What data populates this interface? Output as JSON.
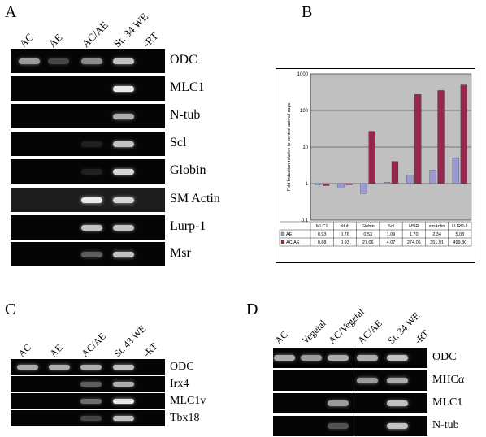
{
  "panels": {
    "A": {
      "letter": "A",
      "lanes": [
        "AC",
        "AE",
        "AC/AE",
        "St. 34 WE",
        "-RT"
      ],
      "rows": [
        {
          "gene": "ODC",
          "bands": [
            0.75,
            0.45,
            0.7,
            0.85,
            0
          ]
        },
        {
          "gene": "MLC1",
          "bands": [
            0,
            0,
            0,
            0.95,
            0
          ]
        },
        {
          "gene": "N-tub",
          "bands": [
            0,
            0,
            0,
            0.8,
            0
          ]
        },
        {
          "gene": "Scl",
          "bands": [
            0,
            0,
            0.1,
            0.85,
            0
          ]
        },
        {
          "gene": "Globin",
          "bands": [
            0,
            0,
            0.12,
            0.9,
            0
          ]
        },
        {
          "gene": "SM Actin",
          "bands": [
            0,
            0,
            0.95,
            0.9,
            0
          ]
        },
        {
          "gene": "Lurp-1",
          "bands": [
            0,
            0,
            0.85,
            0.85,
            0
          ]
        },
        {
          "gene": "Msr",
          "bands": [
            0,
            0,
            0.55,
            0.85,
            0
          ]
        }
      ]
    },
    "B": {
      "letter": "B"
    },
    "C": {
      "letter": "C",
      "lanes": [
        "AC",
        "AE",
        "AC/AE",
        "St. 43 WE",
        "-RT"
      ],
      "rows": [
        {
          "gene": "ODC",
          "bands": [
            0.8,
            0.8,
            0.8,
            0.85,
            0
          ]
        },
        {
          "gene": "Irx4",
          "bands": [
            0,
            0,
            0.55,
            0.8,
            0
          ]
        },
        {
          "gene": "MLC1v",
          "bands": [
            0,
            0,
            0.6,
            0.95,
            0
          ]
        },
        {
          "gene": "Tbx18",
          "bands": [
            0,
            0,
            0.45,
            0.85,
            0
          ]
        }
      ]
    },
    "D": {
      "letter": "D",
      "lanes": [
        "AC",
        "Vegetal",
        "AC/Vegetal",
        "AC/AE",
        "St. 34 WE",
        "-RT"
      ],
      "rows": [
        {
          "gene": "ODC",
          "bands": [
            0.8,
            0.75,
            0.8,
            0.8,
            0.85,
            0
          ]
        },
        {
          "gene": "MHCα",
          "bands": [
            0,
            0,
            0,
            0.75,
            0.8,
            0
          ]
        },
        {
          "gene": "MLC1",
          "bands": [
            0,
            0,
            0.75,
            0,
            0.85,
            0
          ]
        },
        {
          "gene": "N-tub",
          "bands": [
            0,
            0,
            0.5,
            0,
            0.85,
            0
          ]
        }
      ]
    }
  },
  "chart_data": {
    "type": "bar",
    "title": "",
    "xlabel": "",
    "ylabel": "Fold Induction relative to control animal caps",
    "yscale": "log",
    "ylim": [
      0.1,
      1000
    ],
    "yticks": [
      "0.1",
      "1",
      "10",
      "100",
      "1000"
    ],
    "categories": [
      "MLC1",
      "Ntub",
      "Globin",
      "Scl",
      "MSR",
      "smActin",
      "LURP-1"
    ],
    "series": [
      {
        "name": "AE",
        "color": "#9a9ad2",
        "values": [
          0.93,
          0.76,
          0.53,
          1.09,
          1.7,
          2.34,
          5.08
        ],
        "labels": [
          "0.93",
          "0.76",
          "0.53",
          "1.09",
          "1.70",
          "2.34",
          "5.08"
        ]
      },
      {
        "name": "AC/AE",
        "color": "#98264e",
        "values": [
          0.88,
          0.93,
          27.06,
          4.07,
          274.06,
          351.91,
          499.8
        ],
        "labels": [
          "0.88",
          "0.93",
          "27.06",
          "4.07",
          "274.06",
          "351.91",
          "499.80"
        ]
      }
    ],
    "plot_background": "#c0c0c0",
    "grid": true,
    "legend": "data-table"
  }
}
